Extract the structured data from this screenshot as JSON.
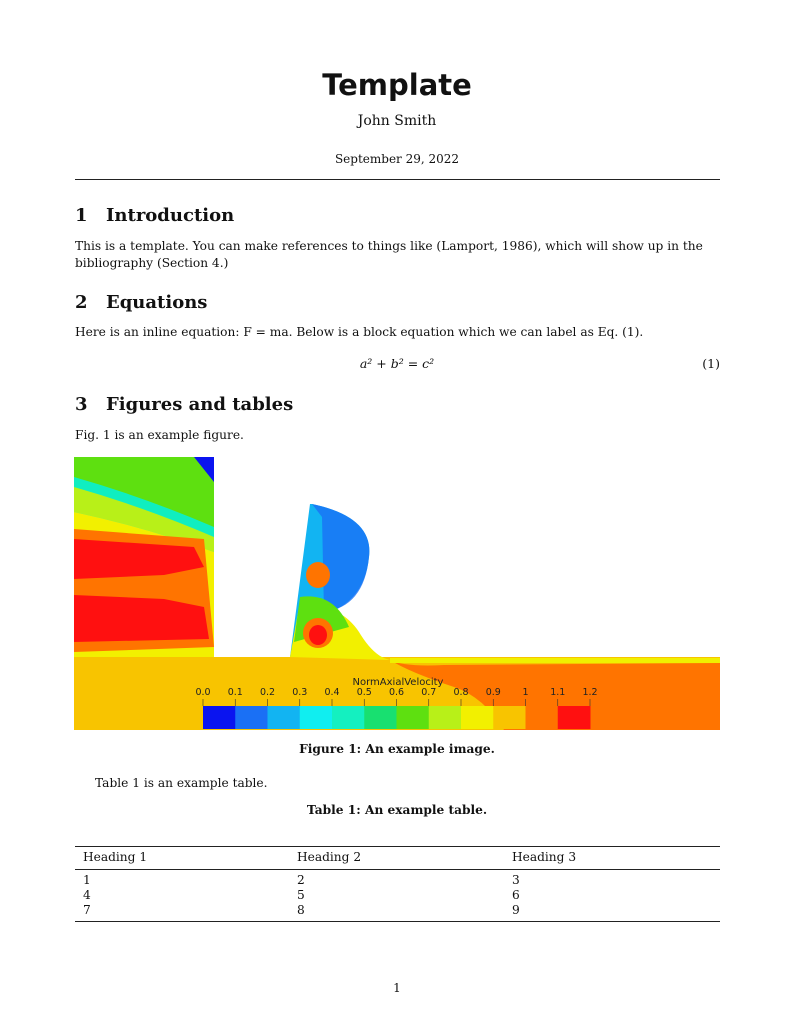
{
  "title": "Template",
  "author": "John Smith",
  "date": "September 29, 2022",
  "sections": [
    {
      "num": "1",
      "title": "Introduction",
      "text": "This is a template. You can make references to things like (Lamport, 1986), which will show up in the bibliography (Section 4.)"
    },
    {
      "num": "2",
      "title": "Equations",
      "text": "Here is an inline equation: F = ma. Below is a block equation which we can label as Eq. (1)."
    },
    {
      "num": "3",
      "title": "Figures and tables",
      "text": "Fig. 1 is an example figure."
    }
  ],
  "equation": {
    "latex": "a² + b² = c²",
    "number": "(1)"
  },
  "figure": {
    "caption": "Figure 1: An example image.",
    "colorbar_title": "NormAxialVelocity",
    "colorbar_ticks": [
      "0.0",
      "0.1",
      "0.2",
      "0.3",
      "0.4",
      "0.5",
      "0.6",
      "0.7",
      "0.8",
      "0.9",
      "1",
      "1.1",
      "1.2"
    ],
    "colorbar_colors": [
      "#0a14f0",
      "#1a70f5",
      "#12b4f2",
      "#10eef0",
      "#14f0c0",
      "#18e070",
      "#5ee010",
      "#b8f018",
      "#f2f000",
      "#f8c400",
      "#ff7400",
      "#ff1010"
    ]
  },
  "table_ref": "Table 1 is an example table.",
  "table": {
    "caption": "Table 1: An example table.",
    "headers": [
      "Heading 1",
      "Heading 2",
      "Heading 3"
    ],
    "rows": [
      [
        "1",
        "2",
        "3"
      ],
      [
        "4",
        "5",
        "6"
      ],
      [
        "7",
        "8",
        "9"
      ]
    ]
  },
  "page_number": "1"
}
